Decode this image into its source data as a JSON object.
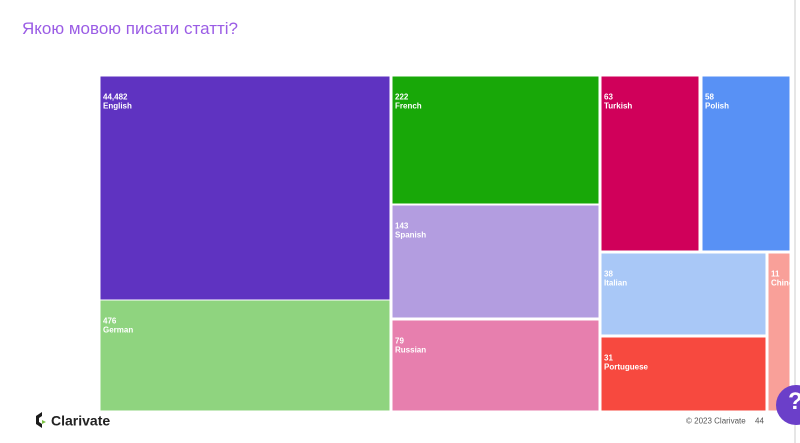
{
  "title": "Якою мовою писати статті?",
  "chart_data": {
    "type": "treemap",
    "categories": [
      "English",
      "German",
      "French",
      "Spanish",
      "Russian",
      "Turkish",
      "Polish",
      "Italian",
      "Portuguese",
      "Chinese"
    ],
    "values": [
      44482,
      476,
      222,
      143,
      79,
      63,
      58,
      38,
      31,
      11
    ],
    "value_labels": [
      "44,482",
      "476",
      "222",
      "143",
      "79",
      "63",
      "58",
      "38",
      "31",
      "11"
    ],
    "colors": [
      "#5f33c1",
      "#8fd47f",
      "#18a808",
      "#b39de0",
      "#e77fae",
      "#d0005a",
      "#5891f5",
      "#a9c8f7",
      "#f7493f",
      "#f9a099"
    ]
  },
  "footer": {
    "logo": "Clarivate",
    "copyright": "© 2023 Clarivate",
    "page_number": "44"
  },
  "help_button": "?"
}
